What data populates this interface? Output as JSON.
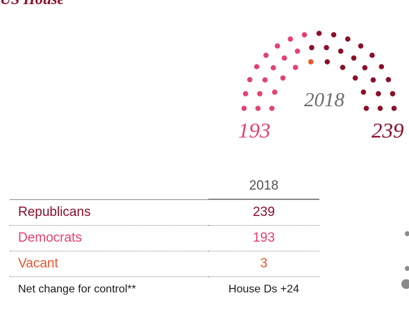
{
  "section_title": "US House",
  "colors": {
    "republican": "#8b0f2a",
    "democrat": "#e4426e",
    "vacant": "#e8542e",
    "muted": "#6d6d6d"
  },
  "chart_data": {
    "type": "parliament-arc",
    "year": "2018",
    "seats": {
      "democrats": 193,
      "vacant": 3,
      "republicans": 239
    },
    "left_total": "193",
    "right_total": "239"
  },
  "table": {
    "column_header": "2018",
    "rows": [
      {
        "label": "Republicans",
        "value": "239",
        "party": "r"
      },
      {
        "label": "Democrats",
        "value": "193",
        "party": "d"
      },
      {
        "label": "Vacant",
        "value": "3",
        "party": "v"
      },
      {
        "label": "Net change for control**",
        "value": "House Ds +24",
        "party": "net"
      }
    ]
  }
}
